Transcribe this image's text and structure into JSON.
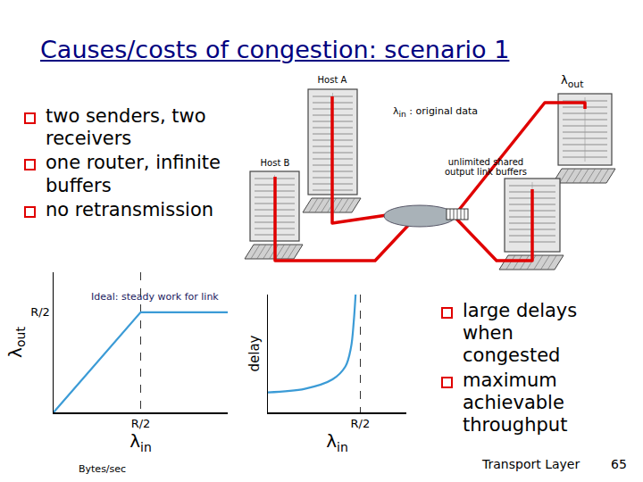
{
  "slide": {
    "title": "Causes/costs of congestion: scenario 1",
    "bullets_left": [
      "two senders, two receivers",
      "one router, infinite buffers",
      "no retransmission"
    ],
    "bullets_right": [
      "large delays when congested",
      "maximum achievable throughput"
    ],
    "footer": "Transport Layer",
    "page_number": 65
  },
  "diagram": {
    "hosts": [
      "Host A",
      "Host B"
    ],
    "input_label": {
      "symbol": "λ",
      "subscript": "in",
      "text": ": original data"
    },
    "output_label": {
      "symbol": "λ",
      "subscript": "out"
    },
    "buffer_label": "unlimited shared output link buffers"
  },
  "chart_data": [
    {
      "type": "line",
      "annotation": "Ideal: steady work for link",
      "x_label": {
        "symbol": "λ",
        "subscript": "in"
      },
      "x_unit": "Bytes/sec",
      "y_label": {
        "symbol": "λ",
        "subscript": "out"
      },
      "x": [
        0,
        0.5,
        1
      ],
      "values": [
        0,
        0.5,
        0.5
      ],
      "xlim": [
        0,
        1
      ],
      "ylim": [
        0,
        0.7
      ],
      "xticks": [
        {
          "value": 0.5,
          "label": "R/2"
        }
      ],
      "yticks": [
        {
          "value": 0.5,
          "label": "R/2"
        }
      ],
      "grid": "x",
      "color": "#3b9bd6"
    },
    {
      "type": "line",
      "x_label": {
        "symbol": "λ",
        "subscript": "in"
      },
      "y_label": "delay",
      "x": [
        0,
        0.2,
        0.35,
        0.42,
        0.45,
        0.465,
        0.475
      ],
      "values": [
        1.7,
        2.0,
        2.8,
        3.9,
        5.5,
        7.7,
        10
      ],
      "xlim": [
        0,
        0.75
      ],
      "ylim": [
        0,
        10
      ],
      "xticks": [
        {
          "value": 0.5,
          "label": "R/2"
        }
      ],
      "yticks": [],
      "tick_labels": "x",
      "grid": "x",
      "color": "#3b9bd6"
    }
  ]
}
